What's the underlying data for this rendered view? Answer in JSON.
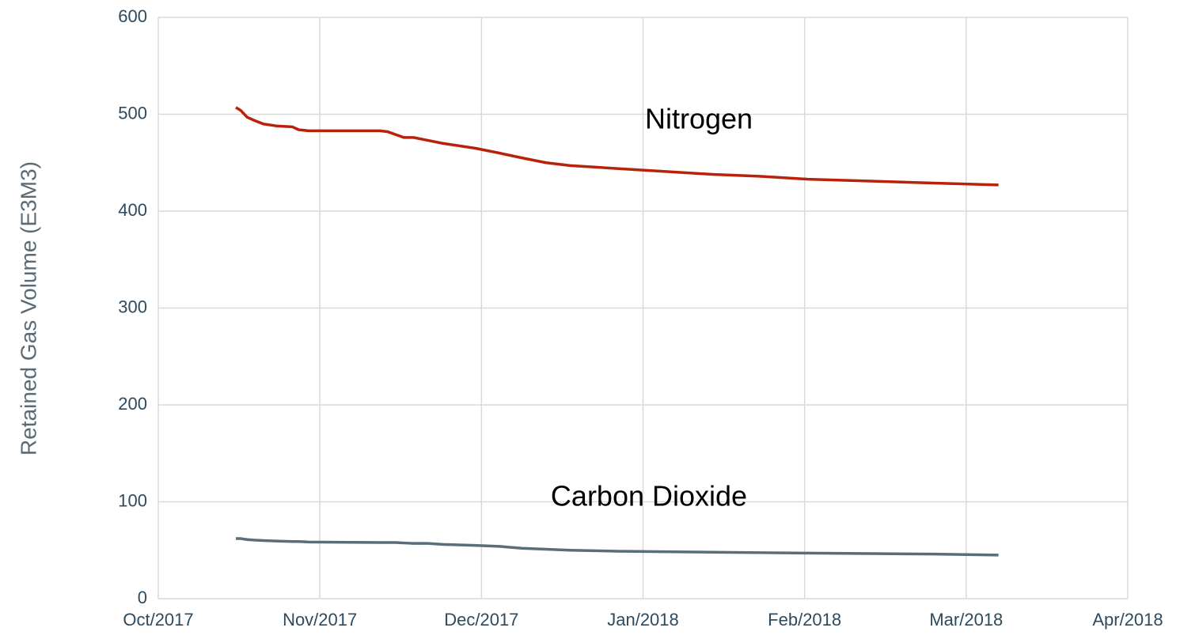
{
  "chart_data": {
    "type": "line",
    "y_label": "Retained Gas Volume (E3M3)",
    "x": [
      0.48,
      0.51,
      0.55,
      0.59,
      0.65,
      0.73,
      0.83,
      0.87,
      0.93,
      1.37,
      1.42,
      1.47,
      1.52,
      1.58,
      1.67,
      1.76,
      1.96,
      2.11,
      2.25,
      2.4,
      2.55,
      2.84,
      3.13,
      3.43,
      3.72,
      4.02,
      4.41,
      4.8,
      5.2
    ],
    "series": [
      {
        "name": "Nitrogen",
        "color": "#b8220a",
        "values": [
          507,
          504,
          497,
          494,
          490,
          488,
          487,
          484,
          483,
          483,
          482,
          479,
          476,
          476,
          473,
          470,
          465,
          460,
          455,
          450,
          447,
          444,
          441,
          438,
          436,
          433,
          431,
          429,
          427
        ]
      },
      {
        "name": "Carbon Dioxide",
        "color": "#5a6e7a",
        "values": [
          62,
          62,
          61,
          60.5,
          60,
          59.5,
          59,
          59,
          58.5,
          58,
          58,
          58,
          57.5,
          57,
          57,
          56,
          55,
          54,
          52,
          51,
          50,
          49,
          48.5,
          48,
          47.5,
          47,
          46.5,
          46,
          45
        ]
      }
    ],
    "xlim": [
      0,
      6
    ],
    "xticks": [
      {
        "value": 0,
        "label": "Oct/2017"
      },
      {
        "value": 1,
        "label": "Nov/2017"
      },
      {
        "value": 2,
        "label": "Dec/2017"
      },
      {
        "value": 3,
        "label": "Jan/2018"
      },
      {
        "value": 4,
        "label": "Feb/2018"
      },
      {
        "value": 5,
        "label": "Mar/2018"
      },
      {
        "value": 6,
        "label": "Apr/2018"
      }
    ],
    "ylim": [
      0,
      600
    ],
    "yticks": [
      0,
      100,
      200,
      300,
      400,
      500,
      600
    ],
    "grid": true
  }
}
